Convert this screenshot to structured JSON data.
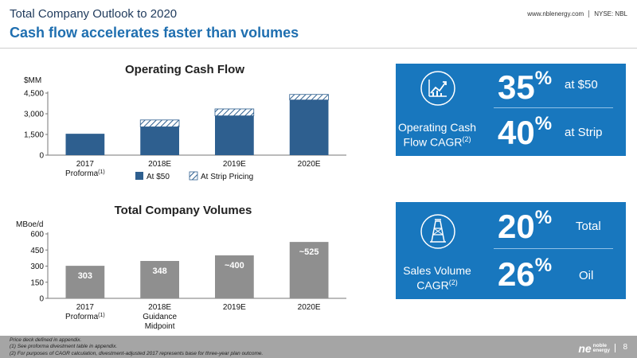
{
  "header": {
    "title": "Total Company Outlook to 2020",
    "subtitle": "Cash flow accelerates faster than volumes",
    "website": "www.nblenergy.com",
    "ticker": "NYSE: NBL"
  },
  "chart_data": [
    {
      "type": "bar",
      "stacked": true,
      "title": "Operating Cash Flow",
      "ylabel": "$MM",
      "ylim": [
        0,
        4500
      ],
      "yticks": [
        "0",
        "1,500",
        "3,000",
        "4,500"
      ],
      "yticks_values": [
        0,
        1500,
        3000,
        4500
      ],
      "categories": [
        "2017",
        "2018E",
        "2019E",
        "2020E"
      ],
      "category_labels": [
        [
          "2017",
          "Proforma",
          "(1)"
        ],
        [
          "2018E"
        ],
        [
          "2019E"
        ],
        [
          "2020E"
        ]
      ],
      "series": [
        {
          "name": "At $50",
          "values": [
            1550,
            2050,
            2850,
            4000
          ],
          "color": "#2e5f8f"
        },
        {
          "name": "At Strip Pricing",
          "values": [
            0,
            500,
            500,
            400
          ],
          "color": "#ffffff",
          "pattern": "hatch"
        }
      ],
      "legend": "bottom",
      "grid": false
    },
    {
      "type": "bar",
      "title": "Total Company Volumes",
      "ylabel": "MBoe/d",
      "ylim": [
        0,
        600
      ],
      "yticks": [
        "0",
        "150",
        "300",
        "450",
        "600"
      ],
      "yticks_values": [
        0,
        150,
        300,
        450,
        600
      ],
      "categories": [
        "2017",
        "2018E",
        "2019E",
        "2020E"
      ],
      "category_labels": [
        [
          "2017",
          "Proforma",
          "(1)"
        ],
        [
          "2018E",
          "Guidance",
          "Midpoint"
        ],
        [
          "2019E"
        ],
        [
          "2020E"
        ]
      ],
      "values": [
        303,
        348,
        400,
        525
      ],
      "data_labels": [
        "303",
        "348",
        "~400",
        "~525"
      ],
      "color": "#8f8f8f",
      "grid": false
    }
  ],
  "kpis": {
    "cash_flow": {
      "label_line1": "Operating Cash",
      "label_line2": "Flow CAGR",
      "label_note": "(2)",
      "icon": "rising-chart-icon",
      "values": [
        {
          "number": "35",
          "unit": "%",
          "desc": "at $50"
        },
        {
          "number": "40",
          "unit": "%",
          "desc": "at Strip"
        }
      ]
    },
    "volume": {
      "label_line1": "Sales Volume",
      "label_line2": "CAGR",
      "label_note": "(2)",
      "icon": "oil-derrick-icon",
      "values": [
        {
          "number": "20",
          "unit": "%",
          "desc": "Total"
        },
        {
          "number": "26",
          "unit": "%",
          "desc": "Oil"
        }
      ]
    },
    "color": "#1877be"
  },
  "footer": {
    "note0": "Price deck defined in appendix.",
    "note1": "(1)    See proforma divestment table in appendix.",
    "note2": "(2)    For purposes of CAGR calculation, divestment-adjusted 2017 represents base for three-year plan outcome.",
    "logo_mark": "ne",
    "logo_word1": "noble",
    "logo_word2": "energy",
    "page": "8"
  }
}
